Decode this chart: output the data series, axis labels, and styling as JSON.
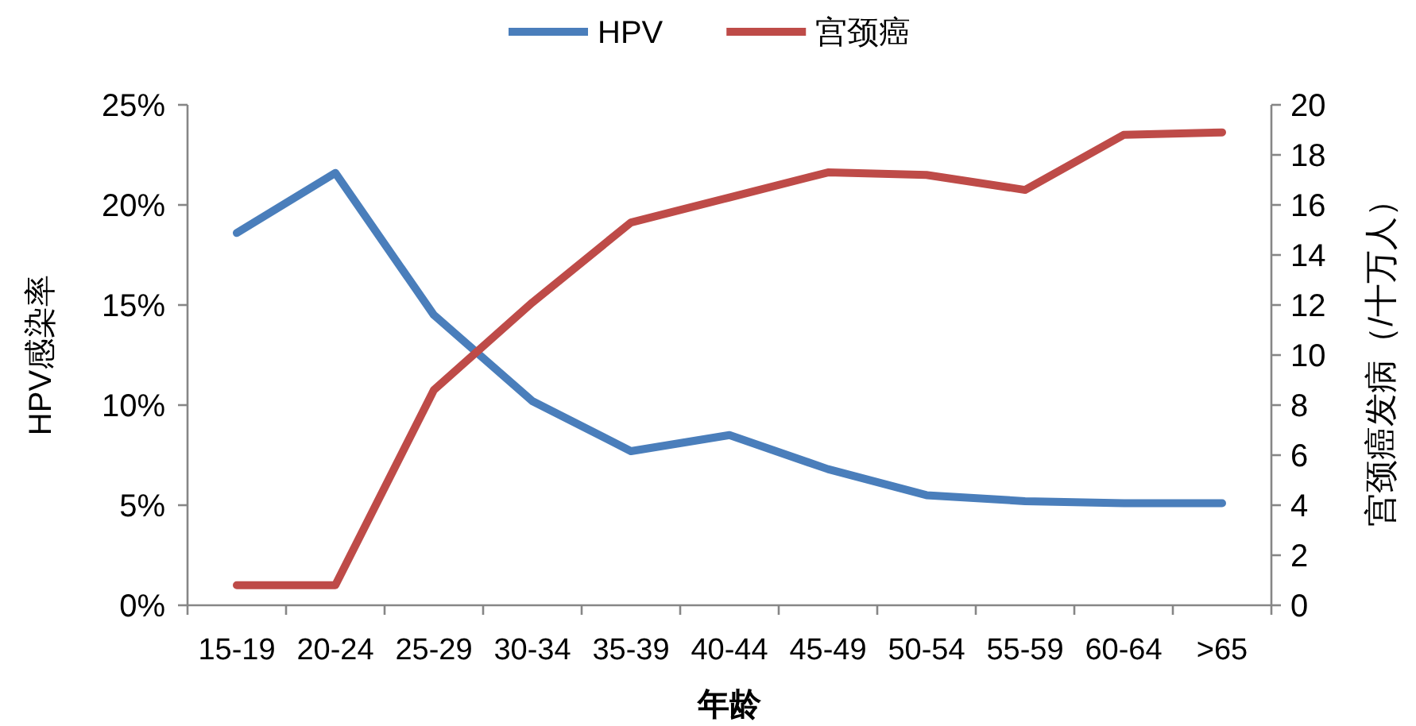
{
  "chart_data": {
    "type": "line",
    "xlabel": "年龄",
    "ylabel": "HPV感染率",
    "y2label": "宫颈癌发病（/十万人）",
    "categories": [
      "15-19",
      "20-24",
      "25-29",
      "30-34",
      "35-39",
      "40-44",
      "45-49",
      "50-54",
      "55-59",
      "60-64",
      ">65"
    ],
    "series": [
      {
        "name": "HPV",
        "color": "#4a7ebb",
        "values": [
          18.6,
          21.6,
          14.5,
          10.2,
          7.7,
          8.5,
          6.8,
          5.5,
          5.2,
          5.1,
          5.1
        ]
      },
      {
        "name": "宫颈癌",
        "color": "#be4b48",
        "axis": "y2",
        "values": [
          0.8,
          0.8,
          8.6,
          12.1,
          15.3,
          16.3,
          17.3,
          17.2,
          16.6,
          18.8,
          18.9
        ]
      }
    ],
    "ylim": [
      0,
      25
    ],
    "yticks": [
      {
        "value": 0,
        "label": "0%"
      },
      {
        "value": 5,
        "label": "5%"
      },
      {
        "value": 10,
        "label": "10%"
      },
      {
        "value": 15,
        "label": "15%"
      },
      {
        "value": 20,
        "label": "20%"
      },
      {
        "value": 25,
        "label": "25%"
      }
    ],
    "y2lim": [
      0,
      20
    ],
    "y2ticks": [
      0,
      2,
      4,
      6,
      8,
      10,
      12,
      14,
      16,
      18,
      20
    ],
    "legend": "top",
    "grid": false,
    "marker": "none",
    "line_style": "solid"
  }
}
